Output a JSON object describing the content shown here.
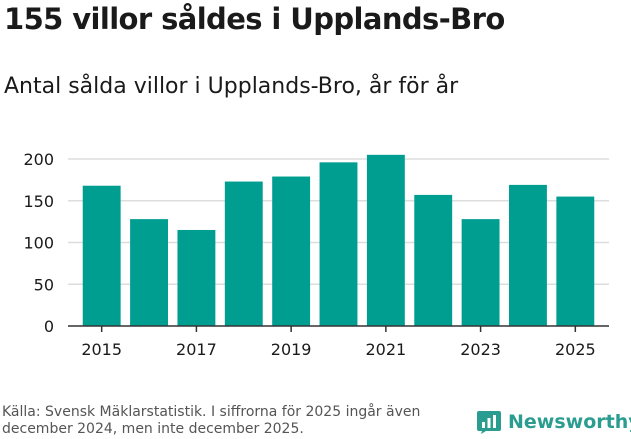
{
  "title": "155 villor såldes i Upplands-Bro",
  "subtitle": "Antal sålda villor i Upplands-Bro, år för år",
  "source": "Källa: Svensk Mäklarstatistik. I siffrorna för 2025 ingår även december 2024, men inte december 2025.",
  "brand": "Newsworthy",
  "colors": {
    "bar": "#009e91",
    "grid": "#dddddd",
    "axis": "#333333",
    "brand": "#2a9d90"
  },
  "chart_data": {
    "type": "bar",
    "title": "155 villor såldes i Upplands-Bro",
    "subtitle": "Antal sålda villor i Upplands-Bro, år för år",
    "xlabel": "",
    "ylabel": "",
    "ylim": [
      0,
      200
    ],
    "yticks": [
      0,
      50,
      100,
      150,
      200
    ],
    "categories": [
      "2015",
      "2016",
      "2017",
      "2018",
      "2019",
      "2020",
      "2021",
      "2022",
      "2023",
      "2024",
      "2025"
    ],
    "xtick_labels": [
      "2015",
      "2017",
      "2019",
      "2021",
      "2023",
      "2025"
    ],
    "values": [
      168,
      128,
      115,
      173,
      179,
      196,
      205,
      157,
      128,
      169,
      155
    ],
    "grid": true,
    "legend": "none"
  }
}
